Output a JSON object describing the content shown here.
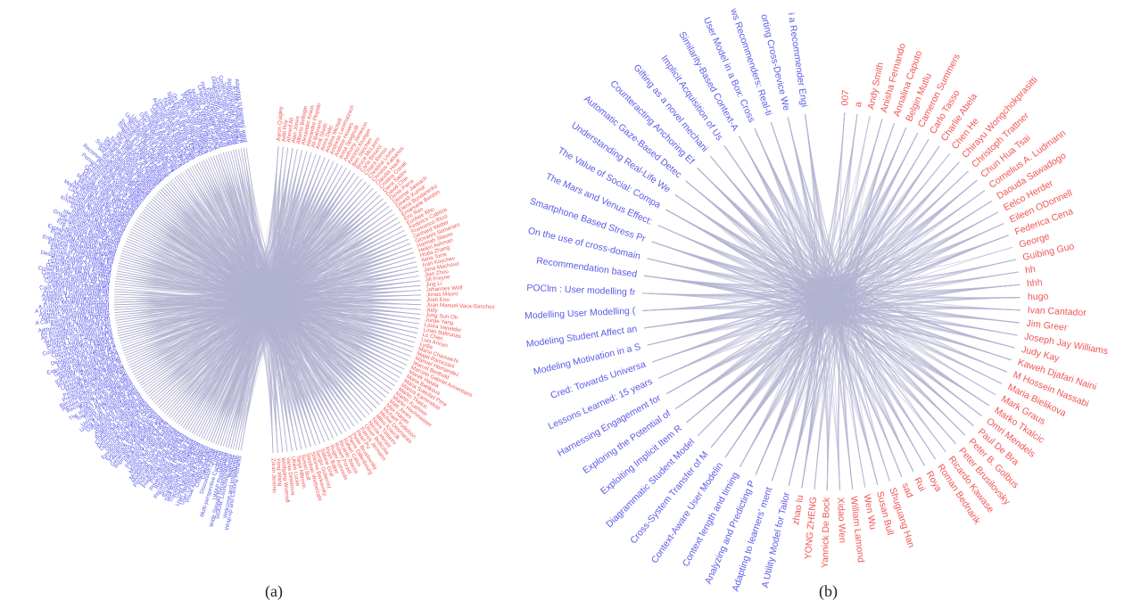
{
  "colors": {
    "paper": "#5b5be8",
    "author": "#f25555",
    "edge": "#b3b3d1",
    "caption": "#222222"
  },
  "panel_a": {
    "caption": "(a)",
    "papers": [
      "Adapting to learners' ment",
      "A Utility Model for Tailor",
      "Analyzing and Predicting P",
      "Context length and timing",
      "Context-Aware User Modelin",
      "Cross-System Transfer of M",
      "Diagrammatic Student Model",
      "Exploiting Implicit Item R",
      "Exploring the Potential of",
      "Harnessing Engagement for",
      "Lessons Learned: 15 years",
      "Cred: Towards Universa",
      "Modeling Motivation in a S",
      "Modeling Student Affect an",
      "Modelling User Modelling (",
      "POClm : User modelling fr",
      "Recommendation based",
      "On the use of cross-domain",
      "Smartphone Based Stress Pr",
      "The Mars and Venus Effect:",
      "The Value of Social: Compa",
      "Understanding Real-Life We",
      "Automatic Gaze-Based Detec",
      "Counteracting Anchoring Ef",
      "Gifting as a novel mechani",
      "Implicit Acquisition of Us",
      "Similarity-Based Context-A",
      "User Model in a Box: Cross",
      "Using Social Web Activity",
      "Using Adaptive Empathic Re",
      "Understanding How Humans T",
      "Towards User Corpus Identi",
      "Towards an Embodied Learne",
      "Towards a Unified Framework",
      "Towards a Digital Learning",
      "The Relevance of Interests",
      "The Influence of Personali",
      "Team Formation for Resear",
      "Tag-based Recommendation",
      "Social Supportive Behaviour",
      "Social Recommender Systems",
      "Social Comparison Learning",
      "Scaffolding Collaborative",
      "Recommending Ensemble Metho",
      "Predicting User Satisfacti",
      "Personalized Recommendation",
      "Personality Matters: Balan",
      "Opinion Dynamics of Social",
      "On the Interplay of Context",
      "Mining Social Networks for",
      "Motivating Users with Game",
      "Modelling Multi-Modal Dial",
      "Modelling Learners in Open",
      "Mobile Recommender Systems",
      "Looking Beyond the Surface",
      "Learning Style Estimation",
      "Learning Analytics Dashboa",
      "Knowledge Tracing Mechanis",
      "Investigating the Role of",
      "Inferring User Interests",
      "Identifying Reading Prefer",
      "Group Recommendation Strat",
      "Gamification in Online Lea",
      "Eye Tracking Based Adapti",
      "Exploring Users' Trust in",
      "Explaining Recommendations",
      "Evaluating Adaptive Navigat",
      "Estimating Cognitive Load",
      "Enhancing Student Engageme",
      "Emotion Recognition in Spe",
      "Effects of Personalized Ed",
      "Dynamic User Profiling for",
      "Designing Adaptive Feedback",
      "Designing for Serendipity",
      "Detecting Learner Frustrat",
      "Deep Learning for Session",
      "Crowd Worker Modeling Meth",
      "Creating Personas from Log",
      "Contextual Bandits for New",
      "Collaboration in a Changin",
      "Collaborative Filtering Ba",
      "Cold-Start Recommendation",
      "Analyzing Collaborative Sk",
      "Adaptive Learning Systems",
      "Adapting Explanations to U",
      "A User Modeling Approach",
      "A Comparison of User Model",
      "A Context-Aware Recommend",
      "Adaptive Personalized News",
      "Agents Supporting Students",
      "A Comparison of How Demogr",
      "Adaptive Activities for Im",
      "Addressing the New User Pro",
      "An Acceptance Model of Rec",
      "An Evaluation Framework for",
      "Automatic Generation of Qu",
      "Building Trust Communities",
      "Context-Aware Places of In",
      "Context-dependent Feedback",
      "Coping with Poor Advice fr",
      "Core Aspects of Affective",
      "Designing and Evaluating a",
      "Exploring the Effects of P",
      "Extending Sound Sample Des",
      "Gender Differences and the",
      "Identifying Requirements f",
      "IDEUMS: Sharing User Mod",
      "Improving Searching and Br",
      "Leveraging Collaborative P",
      "Making Adaptive Tailoring",
      "Personalizing the Environm",
      "Predicting Consumption Rec",
      "Recommender Systems for Sc",
      "Review Recommendation with",
      "Recognizing Time-Dependen",
      "Right Time to Show Info",
      "The Impact of Thought-Based",
      "Towards Adaptive Recomm",
      "Traits of Personality Sup",
      "Using Eye Tracking to Iden",
      "Using Exam Content to Pred",
      "Using Implicit Feedback to",
      "Walking in the Shoes of",
      "Aligning Visualization for",
      "Building a Context-Aware",
      "Collaborative Ranking with",
      "Delivering Personalized Ad",
      "Detecting Changes in User",
      "Discovering Pattern Clust",
      "Emotional Awareness in Coo",
      "Exploiting Temporal Dynami",
      "Feedback Evaluation in Sto",
      "Generating Personalized Su",
      "Improving Engagement and",
      "Influence of Social Ties",
      "Integrating Implicit and E",
      "Learning Curves for Skill",
      "Mining User Interactions f",
      "Modelling Long-Term Intere",
      "Modelling User Preferences",
      "Personality Aware Recomme",
      "Personalized Hint Generati",
      "Predicting Learner Dropout",
      "Preference Elicitation in",
      "Privacy Risks of User Mod",
      "Recognising Affect in Tut",
      "Recommending Points of Int",
      "Scrutable User Models for",
      "Supporting Self-Regulated",
      "Task-Based User Modelling",
      "Tracking User Focus Acros",
      "User Identification Acros",
      "User Modeling for Adaptive",
      "User-Centered Evaluation",
      "Visual Analytics of Learn",
      "Closing Remarks",
      "Coffee Break",
      "Discussion Groups",
      "Lunch",
      "Multi-perspective Context M",
      "Opening",
      "UMAP Presentation",
      "Wide Spread Recommend Sys",
      "SIGUM: Launching Swerve",
      "Welcome",
      "Welcome and Introduction",
      "Wrap-up and Closing Remarks"
    ],
    "authors": [
      "Aaron Quigley",
      "Aditi Roy",
      "Ahmed Ali",
      "Alan Jones",
      "Alberto Bellogin",
      "Alexander Kraus",
      "Alexandre Plopski",
      "Ali Bahrami",
      "Amit Sheth",
      "Amra Delic",
      "Andrea Micheli",
      "Andreas Lommatzsch",
      "Andrew Howes",
      "Anna Spagnolli",
      "Anthony Jameson",
      "Antonio Krueger",
      "Ben Steichen",
      "Bruce McLaren",
      "Carla Binucci",
      "Chiara Renso",
      "Christina Lioma",
      "Christos Katsanos",
      "Claudia Hauff",
      "Cristina Conati",
      "Dana Sadov",
      "David Chin",
      "Denis Parra",
      "Dietmar Jannach",
      "Dinesh Kumar",
      "Elena Bondarenko",
      "Emanuele Bordon",
      "Eric Ras",
      "Eunhee Rho",
      "Federico Cabitza",
      "Francesco Ricci",
      "Gerhard Weber",
      "Giovanni Semeraro",
      "Hannah Stauss",
      "Helen Ashman",
      "Hoda Zhang",
      "Ilaria Torre",
      "Ivan Koychev",
      "Jana Machova",
      "Jian Zhou",
      "Jill Freyne",
      "Jing Li",
      "Johannes Wolf",
      "Jonas Mauro",
      "Josh Eno",
      "Juan Manuel Vaca-Sanchez",
      "Judy",
      "Jung Sun Oh",
      "Junjie Yang",
      "Laura Vanelder",
      "Linas Baltrunas",
      "Lu Chen",
      "Luis Anoyo",
      "Lydia",
      "Maria Chaouachi",
      "Majid Ramezani",
      "Manuel Hernandez",
      "Marcel Berthold",
      "Marcelo Gabriel Armentano",
      "Marek Hatala",
      "Maria Bielikova",
      "Maria Soledad Pera",
      "Marius Kaminskas",
      "Marko Tkalcic",
      "Martin Kuehner",
      "Martin Hochmeister",
      "Matt Jones",
      "Max Harper",
      "Michael Yudelson",
      "Michel Desmarais",
      "Milos Kravcik",
      "Nava Tintarev",
      "Nicola Henze",
      "Oliver Brdiczka",
      "Patrick Jermann",
      "Pearl Pu",
      "Peter Brusilovsky",
      "Pierre Dillenbourg",
      "Rafael Calvo",
      "Ricardo Baeza",
      "Robert Porzel",
      "Roger Azevedo",
      "Ryan Baker",
      "Sabine Graf",
      "Sergio Gutierrez",
      "Shlomo Berkovsky",
      "Stephan Weibelzahl",
      "Susan Bull",
      "Tanja Mitrovic",
      "Ulrike Lucke",
      "Vania Dimitrova",
      "Wolfgang Woerndl",
      "Yang Wang",
      "Zoran Jeremic"
    ]
  },
  "panel_b": {
    "caption": "(b)",
    "papers": [
      "A Utility Model for Tailor",
      "Adapting to learners' ment",
      "Analyzing and Predicting P",
      "Context length and timing",
      "Context-Aware User Modelin",
      "Cross-System Transfer of M",
      "Diagrammatic Student Model",
      "Exploiting Implicit Item R",
      "Exploring the Potential of",
      "Harnessing Engagement for",
      "Lessons Learned: 15 years",
      "Cred: Towards Universa",
      "Modeling Motivation in a S",
      "Modeling Student Affect an",
      "Modelling User Modelling (",
      "POClm : User modelling fr",
      "Recommendation based",
      "On the use of cross-domain",
      "Smartphone Based Stress Pr",
      "The Mars and Venus Effect:",
      "The Value of Social: Compa",
      "Understanding Real-Life We",
      "Automatic Gaze-Based Detec",
      "Counteracting Anchoring Ef",
      "Gifting as a novel mechani",
      "Implicit Acquisition of Us",
      "Similarity-Based Context-A",
      "User Model in a Box: Cross",
      "ws Recommenders: Real-ti",
      "orting Cross-Device We",
      "i a Recommender Engi"
    ],
    "authors": [
      "007",
      "a",
      "Andy Smith",
      "Anisha Fernando",
      "Annalina Caputo",
      "Belgin Mutlu",
      "Cameron Summers",
      "Carlo Tasso",
      "Charlie Abela",
      "Chen He",
      "Chirayu Wongchokprasitti",
      "Christoph Trattner",
      "Chun Hua Tsai",
      "Cornelius A. Ludmann",
      "Daouda Sawadogo",
      "Eelco Herder",
      "Eileen ODonnell",
      "Federica Cena",
      "George",
      "Guibing Guo",
      "hh",
      "hhh",
      "hugo",
      "Ivan Cantador",
      "Jim Greer",
      "Joseph Jay Williams",
      "Judy Kay",
      "Kaweh Djafari Naini",
      "M Hossein Nassabi",
      "Maria Bielikova",
      "Mark Graus",
      "Marko Tkalcic",
      "Omri Mendels",
      "Paul De Bra",
      "Peter B. Golbus",
      "Peter Brusilovsky",
      "Ricardo Kawase",
      "Roman Bednarik",
      "Roya",
      "Rui",
      "sad",
      "Shuguang Han",
      "Susan Bull",
      "Wen Wu",
      "William Lamond",
      "Xidao Wen",
      "Yannick De Bock",
      "YONG ZHENG",
      "zhao lu"
    ]
  }
}
